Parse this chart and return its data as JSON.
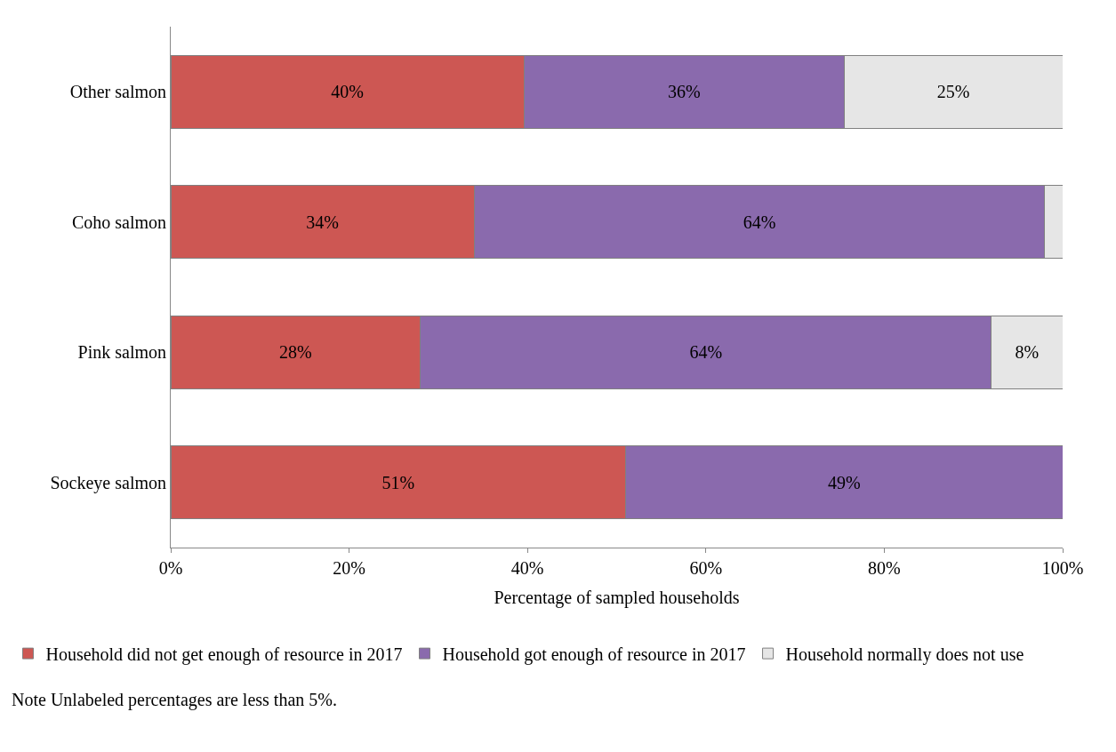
{
  "chart_data": {
    "type": "bar",
    "orientation": "horizontal",
    "stacked": true,
    "categories": [
      "Other salmon",
      "Coho salmon",
      "Pink salmon",
      "Sockeye salmon"
    ],
    "series": [
      {
        "name": "Household did not get enough of resource in 2017",
        "color": "#cd5753",
        "values": [
          39.6,
          34,
          28,
          51
        ],
        "value_labels": [
          "40%",
          "34%",
          "28%",
          "51%"
        ]
      },
      {
        "name": "Household got enough of resource in 2017",
        "color": "#8a6aad",
        "values": [
          35.9,
          64,
          64,
          49
        ],
        "value_labels": [
          "36%",
          "64%",
          "64%",
          "49%"
        ]
      },
      {
        "name": "Household normally does not use",
        "color": "#e6e6e6",
        "values": [
          24.5,
          2,
          8,
          null
        ],
        "value_labels": [
          "25%",
          null,
          "8%",
          null
        ]
      }
    ],
    "xlabel": "Percentage of sampled households",
    "xlim": [
      0,
      100
    ],
    "xticks": [
      {
        "value": 0,
        "label": "0%"
      },
      {
        "value": 20,
        "label": "20%"
      },
      {
        "value": 40,
        "label": "40%"
      },
      {
        "value": 60,
        "label": "60%"
      },
      {
        "value": 80,
        "label": "80%"
      },
      {
        "value": 100,
        "label": "100%"
      }
    ],
    "legend": "bottom",
    "annotations": [
      "Note Unlabeled percentages are less than 5%."
    ]
  }
}
